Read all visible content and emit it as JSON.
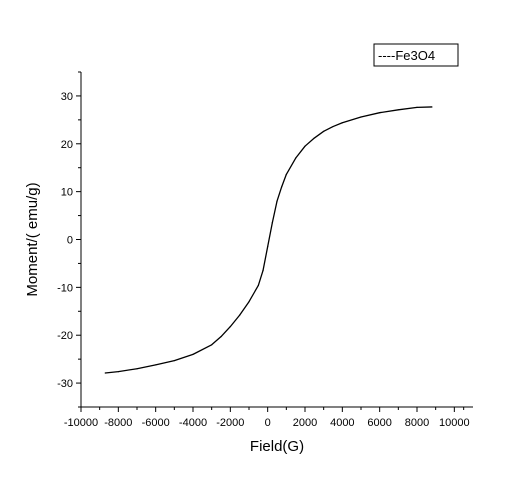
{
  "chart_data": {
    "type": "line",
    "title": "",
    "xlabel": "Field(G)",
    "ylabel": "Moment/( emu/g)",
    "xlim": [
      -10000,
      11000
    ],
    "ylim": [
      -35,
      35
    ],
    "x_ticks": [
      -10000,
      -8000,
      -6000,
      -4000,
      -2000,
      0,
      2000,
      4000,
      6000,
      8000,
      10000
    ],
    "y_ticks": [
      -30,
      -20,
      -10,
      0,
      10,
      20,
      30
    ],
    "grid": false,
    "legend_position": "top-right",
    "series": [
      {
        "name": "Fe3O4",
        "legend_label": "----Fe3O4",
        "color": "#000000",
        "points": [
          [
            -8700,
            -27.9
          ],
          [
            -8000,
            -27.6
          ],
          [
            -7000,
            -27.0
          ],
          [
            -6000,
            -26.2
          ],
          [
            -5000,
            -25.3
          ],
          [
            -4000,
            -24.0
          ],
          [
            -3000,
            -22.0
          ],
          [
            -2500,
            -20.3
          ],
          [
            -2000,
            -18.2
          ],
          [
            -1500,
            -15.8
          ],
          [
            -1000,
            -13.0
          ],
          [
            -500,
            -9.6
          ],
          [
            -250,
            -6.5
          ],
          [
            0,
            -1.5
          ],
          [
            250,
            3.5
          ],
          [
            500,
            8.0
          ],
          [
            750,
            11.0
          ],
          [
            1000,
            13.6
          ],
          [
            1500,
            17.0
          ],
          [
            2000,
            19.5
          ],
          [
            2500,
            21.2
          ],
          [
            3000,
            22.6
          ],
          [
            3500,
            23.6
          ],
          [
            4000,
            24.4
          ],
          [
            5000,
            25.6
          ],
          [
            6000,
            26.5
          ],
          [
            7000,
            27.1
          ],
          [
            8000,
            27.6
          ],
          [
            8800,
            27.7
          ]
        ]
      }
    ]
  }
}
